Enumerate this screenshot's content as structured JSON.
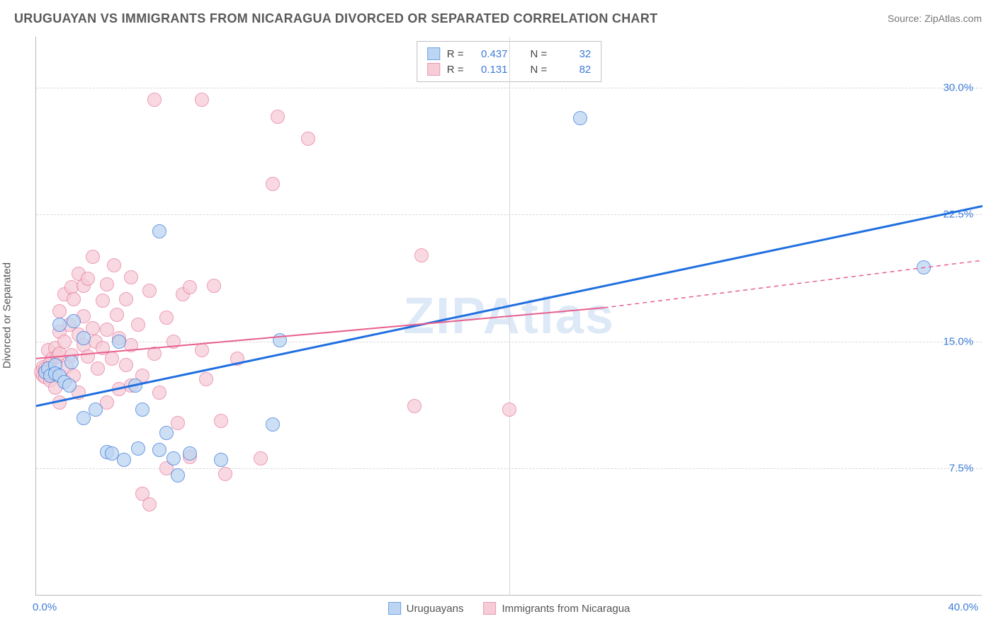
{
  "title": "URUGUAYAN VS IMMIGRANTS FROM NICARAGUA DIVORCED OR SEPARATED CORRELATION CHART",
  "source_label": "Source: ZipAtlas.com",
  "ylabel": "Divorced or Separated",
  "watermark": "ZIPAtlas",
  "xlim": [
    0,
    40
  ],
  "ylim": [
    0,
    33
  ],
  "x_tick_start": "0.0%",
  "x_tick_end": "40.0%",
  "y_ticks": [
    {
      "v": 7.5,
      "label": "7.5%"
    },
    {
      "v": 15.0,
      "label": "15.0%"
    },
    {
      "v": 22.5,
      "label": "22.5%"
    },
    {
      "v": 30.0,
      "label": "30.0%"
    }
  ],
  "x_grid_at": 20,
  "series": {
    "blue": {
      "name": "Uruguayans",
      "fill": "#bcd5f2",
      "stroke": "#3d7bd9",
      "swatch_fill": "#bcd5f2",
      "swatch_border": "#6fa3e6",
      "r_value": "0.437",
      "n_value": "32",
      "marker_radius": 10,
      "trend": {
        "x1": 0,
        "y1": 11.2,
        "x2": 40,
        "y2": 23.0,
        "color": "#1f6fe0",
        "width": 3,
        "dash": null
      },
      "points": [
        [
          0.4,
          13.2
        ],
        [
          0.5,
          13.4
        ],
        [
          0.6,
          13.0
        ],
        [
          0.8,
          13.6
        ],
        [
          0.8,
          13.1
        ],
        [
          1.0,
          13.0
        ],
        [
          1.0,
          16.0
        ],
        [
          1.2,
          12.6
        ],
        [
          1.4,
          12.4
        ],
        [
          1.5,
          13.8
        ],
        [
          1.6,
          16.2
        ],
        [
          2.0,
          10.5
        ],
        [
          2.0,
          15.2
        ],
        [
          2.5,
          11.0
        ],
        [
          3.0,
          8.5
        ],
        [
          3.2,
          8.4
        ],
        [
          3.5,
          15.0
        ],
        [
          3.7,
          8.0
        ],
        [
          4.2,
          12.4
        ],
        [
          4.3,
          8.7
        ],
        [
          4.5,
          11.0
        ],
        [
          5.2,
          8.6
        ],
        [
          5.2,
          21.5
        ],
        [
          5.5,
          9.6
        ],
        [
          5.8,
          8.1
        ],
        [
          6.0,
          7.1
        ],
        [
          6.5,
          8.4
        ],
        [
          7.8,
          8.0
        ],
        [
          10.0,
          10.1
        ],
        [
          10.3,
          15.1
        ],
        [
          23.0,
          28.2
        ],
        [
          37.5,
          19.4
        ]
      ]
    },
    "pink": {
      "name": "Immigrants from Nicaragua",
      "fill": "#f6cdd7",
      "stroke": "#e87ba0",
      "swatch_fill": "#f6cdd7",
      "swatch_border": "#ea9ab5",
      "r_value": "0.131",
      "n_value": "82",
      "marker_radius": 10,
      "trend_solid": {
        "x1": 0,
        "y1": 14.0,
        "x2": 24,
        "y2": 17.0,
        "color": "#e85f8e",
        "width": 2
      },
      "trend_dash": {
        "x1": 24,
        "y1": 17.0,
        "x2": 40,
        "y2": 19.8,
        "color": "#e85f8e",
        "width": 1.5
      },
      "points": [
        [
          0.2,
          13.2
        ],
        [
          0.3,
          13.0
        ],
        [
          0.3,
          13.5
        ],
        [
          0.4,
          12.9
        ],
        [
          0.4,
          13.4
        ],
        [
          0.5,
          14.5
        ],
        [
          0.5,
          13.2
        ],
        [
          0.6,
          13.8
        ],
        [
          0.6,
          12.7
        ],
        [
          0.7,
          14.0
        ],
        [
          0.7,
          13.1
        ],
        [
          0.8,
          14.6
        ],
        [
          0.8,
          12.3
        ],
        [
          0.9,
          14.1
        ],
        [
          1.0,
          14.3
        ],
        [
          1.0,
          15.6
        ],
        [
          1.0,
          11.4
        ],
        [
          1.0,
          16.8
        ],
        [
          1.2,
          17.8
        ],
        [
          1.2,
          15.0
        ],
        [
          1.3,
          13.5
        ],
        [
          1.4,
          16.0
        ],
        [
          1.5,
          14.2
        ],
        [
          1.5,
          18.2
        ],
        [
          1.6,
          17.5
        ],
        [
          1.6,
          13.0
        ],
        [
          1.8,
          15.4
        ],
        [
          1.8,
          12.0
        ],
        [
          1.8,
          19.0
        ],
        [
          2.0,
          16.5
        ],
        [
          2.0,
          18.3
        ],
        [
          2.0,
          14.8
        ],
        [
          2.2,
          14.1
        ],
        [
          2.2,
          18.7
        ],
        [
          2.4,
          15.8
        ],
        [
          2.4,
          20.0
        ],
        [
          2.5,
          15.0
        ],
        [
          2.6,
          13.4
        ],
        [
          2.8,
          17.4
        ],
        [
          2.8,
          14.6
        ],
        [
          3.0,
          11.4
        ],
        [
          3.0,
          18.4
        ],
        [
          3.0,
          15.7
        ],
        [
          3.2,
          14.0
        ],
        [
          3.3,
          19.5
        ],
        [
          3.4,
          16.6
        ],
        [
          3.5,
          15.2
        ],
        [
          3.5,
          12.2
        ],
        [
          3.8,
          13.6
        ],
        [
          3.8,
          17.5
        ],
        [
          4.0,
          12.4
        ],
        [
          4.0,
          14.8
        ],
        [
          4.0,
          18.8
        ],
        [
          4.3,
          16.0
        ],
        [
          4.5,
          13.0
        ],
        [
          4.5,
          6.0
        ],
        [
          4.8,
          18.0
        ],
        [
          4.8,
          5.4
        ],
        [
          5.0,
          29.3
        ],
        [
          5.0,
          14.3
        ],
        [
          5.2,
          12.0
        ],
        [
          5.5,
          7.5
        ],
        [
          5.5,
          16.4
        ],
        [
          5.8,
          15.0
        ],
        [
          6.0,
          10.2
        ],
        [
          6.2,
          17.8
        ],
        [
          6.5,
          8.2
        ],
        [
          6.5,
          18.2
        ],
        [
          7.0,
          14.5
        ],
        [
          7.0,
          29.3
        ],
        [
          7.2,
          12.8
        ],
        [
          7.5,
          18.3
        ],
        [
          7.8,
          10.3
        ],
        [
          8.0,
          7.2
        ],
        [
          8.5,
          14.0
        ],
        [
          9.5,
          8.1
        ],
        [
          10.0,
          24.3
        ],
        [
          10.2,
          28.3
        ],
        [
          11.5,
          27.0
        ],
        [
          16.0,
          11.2
        ],
        [
          16.3,
          20.1
        ],
        [
          20.0,
          11.0
        ]
      ]
    }
  },
  "legend_labels": {
    "r": "R =",
    "n": "N ="
  },
  "background_color": "#ffffff",
  "grid_color": "#d8d8d8",
  "axis_color": "#b8b8b8",
  "tick_label_color": "#3d7bd9",
  "title_color": "#5a5a5a"
}
